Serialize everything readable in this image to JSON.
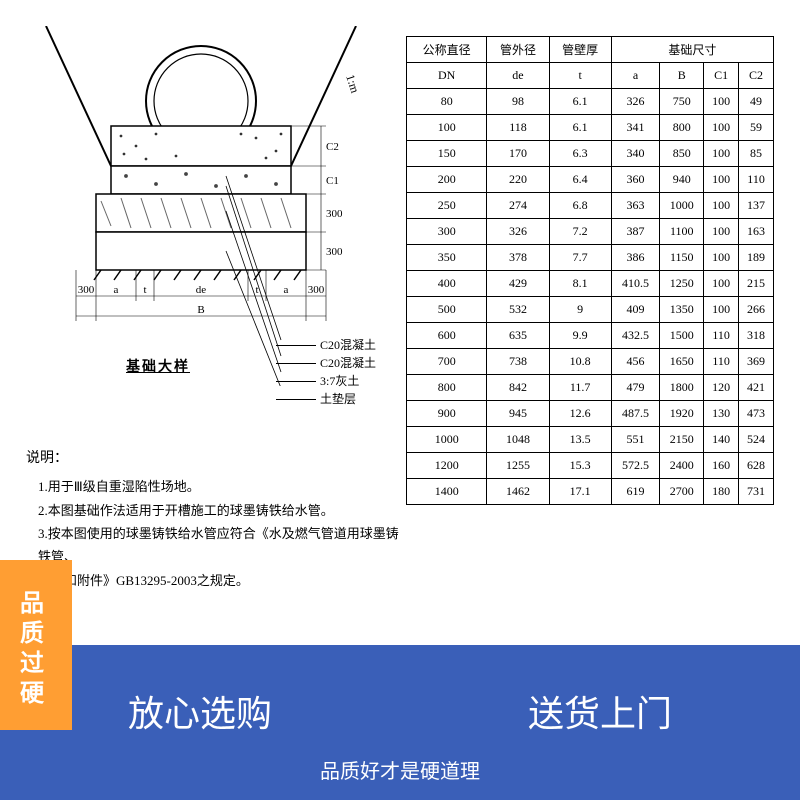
{
  "diagram": {
    "title": "基础大样",
    "scale_label": "1:m",
    "layer_labels": {
      "c2": "C2",
      "c1": "C1",
      "l300a": "300",
      "l300b": "300"
    },
    "bottom_dims": {
      "left300": "300",
      "a1": "a",
      "t1": "t",
      "de": "de",
      "t2": "t",
      "a2": "a",
      "right300": "300",
      "B": "B"
    },
    "legend": [
      "C20混凝土",
      "C20混凝土",
      "3:7灰土",
      "土垫层"
    ],
    "stroke": "#000000",
    "fill_concrete": "#ffffff",
    "hatch_color": "#4a4a4a"
  },
  "notes": {
    "title": "说明：",
    "lines": [
      "1.用于Ⅲ级自重湿陷性场地。",
      "2.本图基础作法适用于开槽施工的球墨铸铁给水管。",
      "3.按本图使用的球墨铸铁给水管应符合《水及燃气管道用球墨铸铁管、",
      "管件和附件》GB13295-2003之规定。"
    ]
  },
  "table": {
    "header_group": "基础尺寸",
    "header1": [
      "公称直径",
      "管外径",
      "管壁厚"
    ],
    "header2": [
      "DN",
      "de",
      "t",
      "a",
      "B",
      "C1",
      "C2"
    ],
    "rows": [
      [
        "80",
        "98",
        "6.1",
        "326",
        "750",
        "100",
        "49"
      ],
      [
        "100",
        "118",
        "6.1",
        "341",
        "800",
        "100",
        "59"
      ],
      [
        "150",
        "170",
        "6.3",
        "340",
        "850",
        "100",
        "85"
      ],
      [
        "200",
        "220",
        "6.4",
        "360",
        "940",
        "100",
        "110"
      ],
      [
        "250",
        "274",
        "6.8",
        "363",
        "1000",
        "100",
        "137"
      ],
      [
        "300",
        "326",
        "7.2",
        "387",
        "1100",
        "100",
        "163"
      ],
      [
        "350",
        "378",
        "7.7",
        "386",
        "1150",
        "100",
        "189"
      ],
      [
        "400",
        "429",
        "8.1",
        "410.5",
        "1250",
        "100",
        "215"
      ],
      [
        "500",
        "532",
        "9",
        "409",
        "1350",
        "100",
        "266"
      ],
      [
        "600",
        "635",
        "9.9",
        "432.5",
        "1500",
        "110",
        "318"
      ],
      [
        "700",
        "738",
        "10.8",
        "456",
        "1650",
        "110",
        "369"
      ],
      [
        "800",
        "842",
        "11.7",
        "479",
        "1800",
        "120",
        "421"
      ],
      [
        "900",
        "945",
        "12.6",
        "487.5",
        "1920",
        "130",
        "473"
      ],
      [
        "1000",
        "1048",
        "13.5",
        "551",
        "2150",
        "140",
        "524"
      ],
      [
        "1200",
        "1255",
        "15.3",
        "572.5",
        "2400",
        "160",
        "628"
      ],
      [
        "1400",
        "1462",
        "17.1",
        "619",
        "2700",
        "180",
        "731"
      ]
    ],
    "border_color": "#000000",
    "font_size": 12
  },
  "banner": {
    "bg": "#3a5fb8",
    "side_bg": "#ff9e33",
    "side_text": "品质过硬",
    "items": [
      "放心选购",
      "送货上门"
    ],
    "sub": "品质好才是硬道理"
  }
}
